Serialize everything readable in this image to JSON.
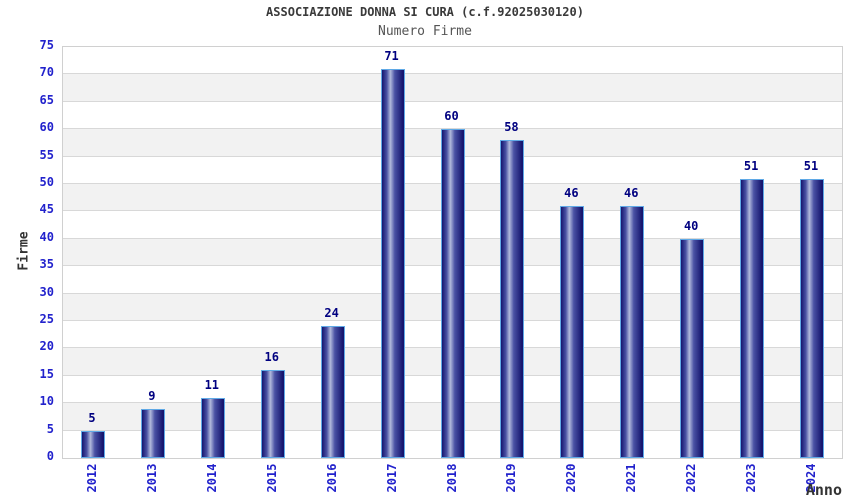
{
  "chart_data": {
    "type": "bar",
    "title": "ASSOCIAZIONE DONNA SI CURA (c.f.92025030120)",
    "subtitle": "Numero Firme",
    "xlabel": "Anno",
    "ylabel": "Firme",
    "categories": [
      "2012",
      "2013",
      "2014",
      "2015",
      "2016",
      "2017",
      "2018",
      "2019",
      "2020",
      "2021",
      "2022",
      "2023",
      "2024"
    ],
    "values": [
      5,
      9,
      11,
      16,
      24,
      71,
      60,
      58,
      46,
      46,
      40,
      51,
      51
    ],
    "ylim": [
      0,
      75
    ],
    "ytick_step": 5,
    "grid": "horizontal-bands-alternating",
    "legend": "none",
    "colors": {
      "title": "#3a3a3a",
      "subtitle": "#555555",
      "axis_title": "#333333",
      "tick_label": "#2222cc",
      "value_label": "#000080",
      "bar_dark": "#15156e",
      "bar_mid": "#4a52a4",
      "bar_light": "#b2badc",
      "bar_border": "#5fa9e6",
      "band_gray": "#f2f2f2",
      "grid_line": "#d8d8d8",
      "plot_border": "#d0d0d0"
    }
  }
}
